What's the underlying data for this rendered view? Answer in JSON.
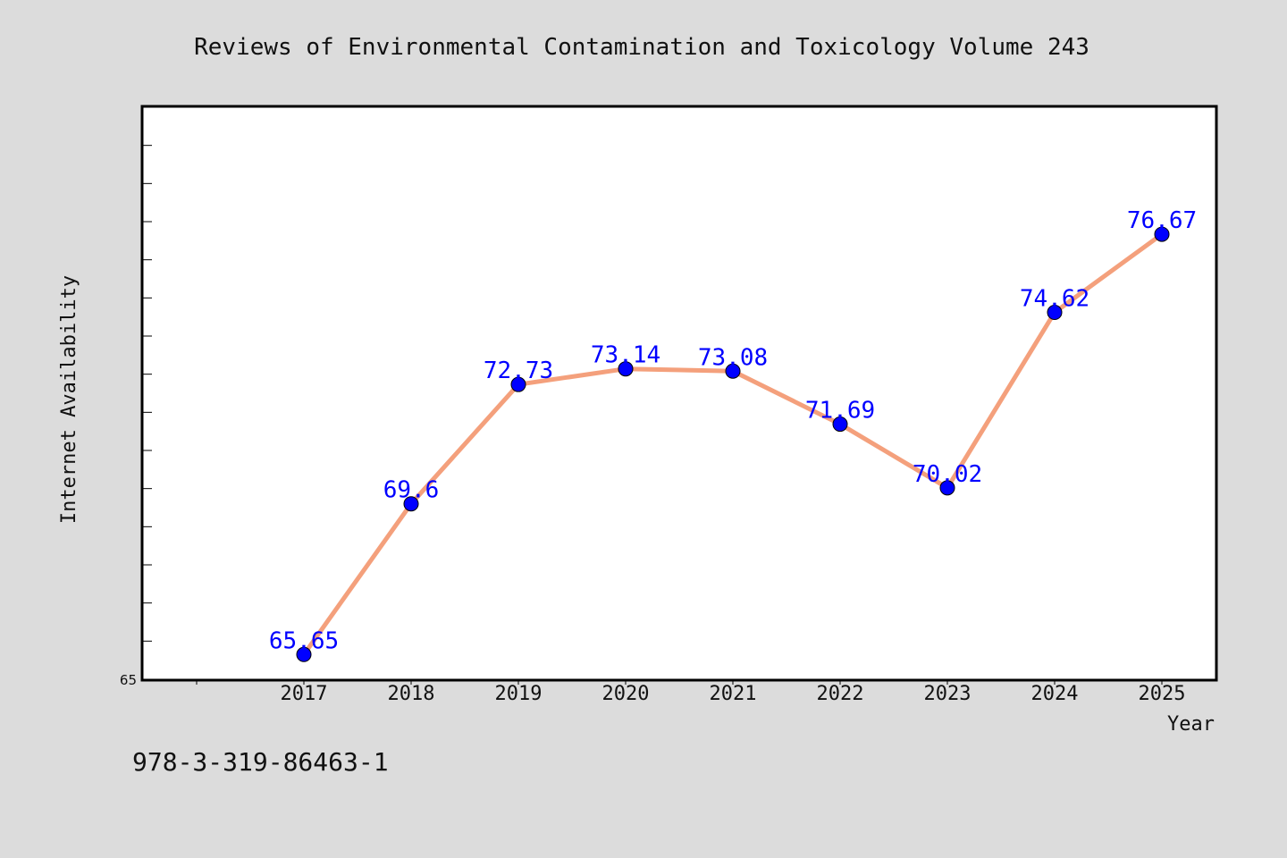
{
  "chart_data": {
    "type": "line",
    "title": "Reviews of Environmental Contamination and Toxicology Volume 243",
    "xlabel": "Year",
    "ylabel": "Internet Availability",
    "categories": [
      "2017",
      "2018",
      "2019",
      "2020",
      "2021",
      "2022",
      "2023",
      "2024",
      "2025"
    ],
    "values": [
      65.65,
      69.6,
      72.73,
      73.14,
      73.08,
      71.69,
      70.02,
      74.62,
      76.67
    ],
    "data_labels": [
      "65.65",
      "69.6",
      "72.73",
      "73.14",
      "73.08",
      "71.69",
      "70.02",
      "74.62",
      "76.67"
    ],
    "ylim": [
      65,
      80
    ],
    "y_tick_labels": [
      "65"
    ],
    "y_minor_tick_step": 1,
    "y_major_tick_step": 5,
    "grid": false,
    "legend": "none",
    "colors": {
      "line": "#f4a07c",
      "marker": "#0000ff",
      "data_label": "#0000ff",
      "plot_background": "#ffffff",
      "page_background": "#dcdcdc"
    }
  },
  "footnote": "978-3-319-86463-1"
}
